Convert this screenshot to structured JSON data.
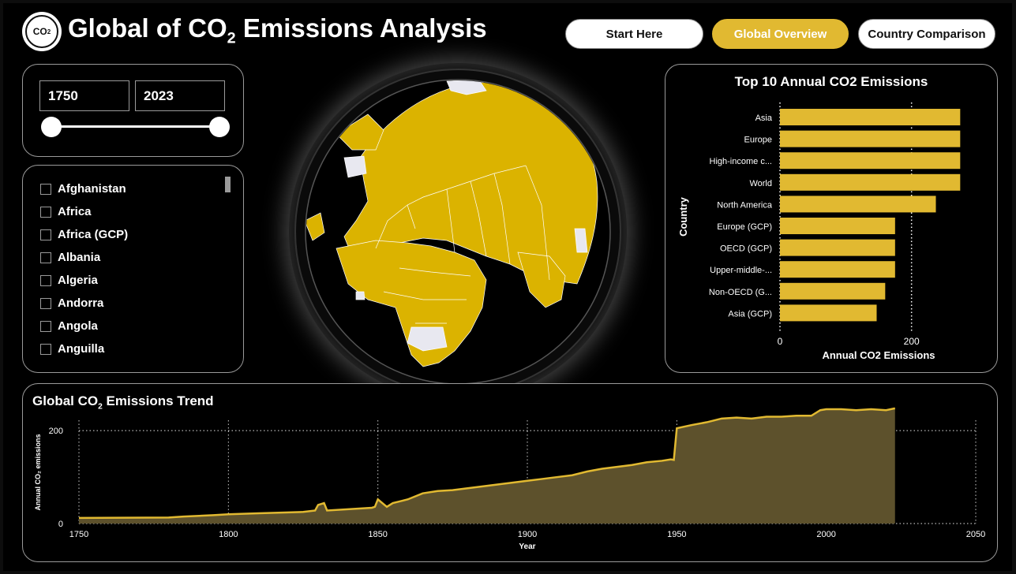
{
  "header": {
    "logo_text": "CO",
    "logo_sub": "2",
    "title_main": "Global of CO",
    "title_sub": "2",
    "title_rest": " Emissions Analysis"
  },
  "nav": {
    "start_here": "Start Here",
    "global_overview": "Global Overview",
    "country_comparison": "Country Comparison",
    "active": "global_overview"
  },
  "year_filter": {
    "start": "1750",
    "end": "2023"
  },
  "country_list": {
    "items": [
      "Afghanistan",
      "Africa",
      "Africa (GCP)",
      "Albania",
      "Algeria",
      "Andorra",
      "Angola",
      "Anguilla"
    ]
  },
  "colors": {
    "accent": "#e1b931",
    "globe_land": "#dbb300",
    "area_fill": "#5d512c",
    "background": "#000000"
  },
  "globe": {
    "icon": "globe-map"
  },
  "chart_data": [
    {
      "type": "bar",
      "title": "Top 10 Annual CO2 Emissions",
      "xlabel": "Annual CO2 Emissions",
      "ylabel": "Country",
      "orientation": "horizontal",
      "categories": [
        "Asia",
        "Europe",
        "High-income c...",
        "World",
        "North America",
        "Europe (GCP)",
        "OECD (GCP)",
        "Upper-middle-...",
        "Non-OECD (G...",
        "Asia (GCP)"
      ],
      "values": [
        274,
        274,
        274,
        274,
        237,
        175,
        175,
        175,
        160,
        147
      ],
      "xlim": [
        0,
        300
      ],
      "xticks": [
        "0",
        "200"
      ],
      "grid": true
    },
    {
      "type": "area",
      "title": "Global CO",
      "title_sub": "2",
      "title_rest": " Emissions Trend",
      "xlabel": "Year",
      "ylabel": "Annual CO₂ emissions",
      "xlim": [
        1750,
        2050
      ],
      "ylim": [
        0,
        280
      ],
      "xticks": [
        "1750",
        "1800",
        "1850",
        "1900",
        "1950",
        "2000",
        "2050"
      ],
      "yticks": [
        "0",
        "200"
      ],
      "x": [
        1750,
        1780,
        1785,
        1795,
        1800,
        1810,
        1825,
        1829,
        1830,
        1832,
        1833,
        1848,
        1849,
        1850,
        1853,
        1855,
        1860,
        1865,
        1870,
        1875,
        1880,
        1885,
        1890,
        1895,
        1900,
        1905,
        1910,
        1915,
        1920,
        1925,
        1930,
        1935,
        1940,
        1945,
        1948,
        1949,
        1950,
        1955,
        1960,
        1965,
        1970,
        1975,
        1980,
        1985,
        1990,
        1995,
        1998,
        2000,
        2005,
        2010,
        2015,
        2020,
        2023
      ],
      "y": [
        12,
        13,
        15,
        18,
        20,
        22,
        25,
        28,
        40,
        44,
        28,
        34,
        36,
        52,
        36,
        44,
        52,
        65,
        70,
        72,
        76,
        80,
        84,
        88,
        92,
        96,
        100,
        104,
        112,
        118,
        122,
        126,
        132,
        135,
        138,
        137,
        205,
        212,
        218,
        226,
        228,
        226,
        230,
        230,
        232,
        232,
        244,
        246,
        246,
        244,
        246,
        244,
        248
      ],
      "grid": true
    }
  ]
}
